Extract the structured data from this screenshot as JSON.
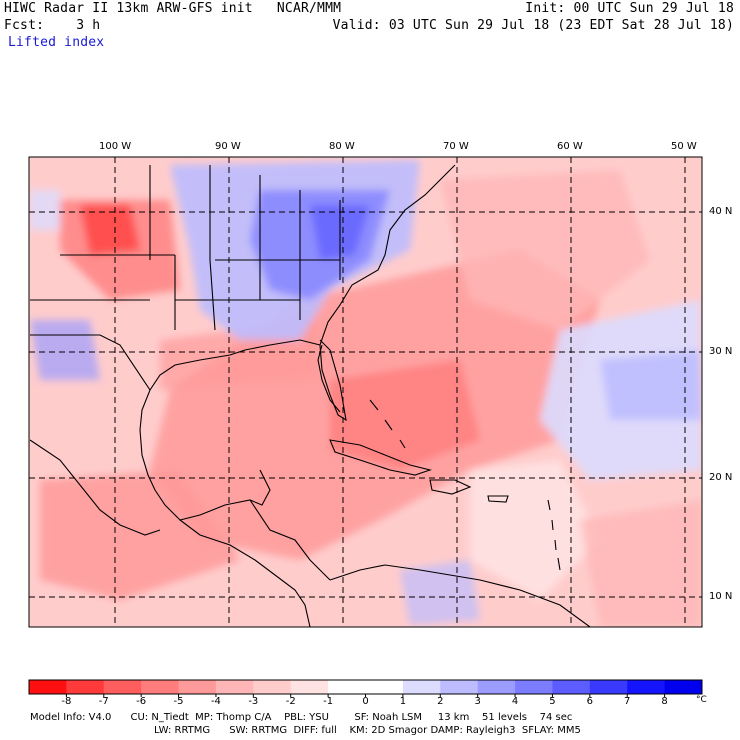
{
  "header": {
    "line1_left": "HIWC Radar II 13km ARW-GFS init   NCAR/MMM",
    "line1_right": "Init: 00 UTC Sun 29 Jul 18",
    "line2_left": "Fcst:    3 h",
    "line2_right": "Valid: 03 UTC Sun 29 Jul 18 (23 EDT Sat 28 Jul 18)",
    "field": "Lifted index"
  },
  "map": {
    "longitude_labels": [
      "100 W",
      "90 W",
      "80 W",
      "70 W",
      "60 W",
      "50 W"
    ],
    "latitude_labels": [
      "40 N",
      "30 N",
      "20 N",
      "10 N"
    ]
  },
  "colorbar": {
    "unit": "°C",
    "tick_labels": [
      "-8",
      "-7",
      "-6",
      "-5",
      "-4",
      "-3",
      "-2",
      "-1",
      "0",
      "1",
      "2",
      "3",
      "4",
      "5",
      "6",
      "7",
      "8"
    ],
    "colors": [
      "#ff1010",
      "#ff3a3a",
      "#ff5e5e",
      "#ff7d7d",
      "#ff9a9a",
      "#ffb6b6",
      "#ffcccc",
      "#ffe2e2",
      "#ffffff",
      "#ffffff",
      "#dcdcff",
      "#bcbcff",
      "#9c9cff",
      "#7c7cff",
      "#5c5cff",
      "#3a3aff",
      "#1414ff",
      "#0000ee"
    ]
  },
  "footer": {
    "line1": "Model Info: V4.0      CU: N_Tiedt  MP: Thomp C/A    PBL: YSU        SF: Noah LSM     13 km    51 levels    74 sec",
    "line2": "LW: RRTMG      SW: RRTMG  DIFF: full    KM: 2D Smagor DAMP: Rayleigh3  SFLAY: MM5"
  }
}
